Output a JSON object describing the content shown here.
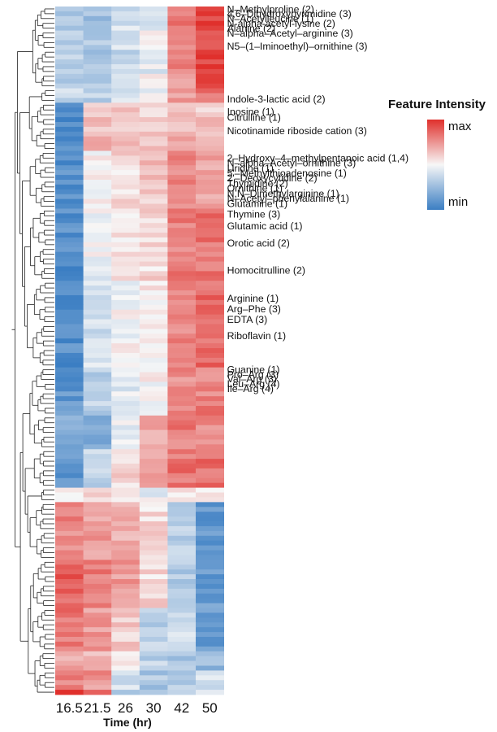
{
  "chart_data": {
    "type": "heatmap",
    "xlabel": "Time (hr)",
    "x_categories": [
      "16.5",
      "21.5",
      "26",
      "30",
      "42",
      "50"
    ],
    "legend": {
      "title": "Feature Intensity",
      "max_label": "max",
      "min_label": "min",
      "colors": {
        "max": "#e0302c",
        "mid": "#f7f7f7",
        "min": "#3b7ec3"
      },
      "placement": "right"
    },
    "scale": "relative intensity, -1 = min (blue), 0 = mid (white), 1 = max (red)",
    "column_dendrogram": false,
    "row_dendrogram": true,
    "row_clusters": [
      {
        "rows": 5,
        "values": [
          -0.35,
          -0.45,
          -0.2,
          -0.1,
          0.6,
          0.9
        ]
      },
      {
        "rows": 4,
        "values": [
          -0.3,
          -0.4,
          -0.15,
          -0.05,
          0.6,
          0.85
        ]
      },
      {
        "rows": 5,
        "values": [
          -0.35,
          -0.4,
          -0.25,
          -0.1,
          0.55,
          0.9
        ]
      },
      {
        "rows": 3,
        "values": [
          -0.3,
          -0.4,
          -0.2,
          0.05,
          0.5,
          0.8
        ]
      },
      {
        "rows": 3,
        "values": [
          -0.25,
          -0.3,
          -0.1,
          -0.05,
          0.45,
          0.7
        ]
      },
      {
        "rows": 10,
        "values": [
          -0.85,
          0.3,
          0.25,
          0.2,
          0.35,
          0.25
        ]
      },
      {
        "rows": 12,
        "values": [
          -0.85,
          0.05,
          0.15,
          0.25,
          0.55,
          0.45
        ]
      },
      {
        "rows": 15,
        "values": [
          -0.85,
          -0.05,
          0.1,
          0.15,
          0.6,
          0.65
        ]
      },
      {
        "rows": 18,
        "values": [
          -0.85,
          -0.2,
          0.0,
          0.05,
          0.6,
          0.7
        ]
      },
      {
        "rows": 10,
        "values": [
          -0.8,
          -0.3,
          -0.1,
          0.0,
          0.55,
          0.6
        ]
      },
      {
        "rows": 7,
        "values": [
          -0.6,
          -0.6,
          -0.05,
          0.4,
          0.6,
          0.55
        ]
      },
      {
        "rows": 8,
        "values": [
          -0.8,
          -0.3,
          0.15,
          0.35,
          0.65,
          0.7
        ]
      },
      {
        "rows": 3,
        "values": [
          0.1,
          0.15,
          0.05,
          -0.05,
          0.1,
          0.1
        ]
      },
      {
        "rows": 12,
        "values": [
          0.55,
          0.45,
          0.35,
          0.15,
          -0.3,
          -0.8
        ]
      },
      {
        "rows": 10,
        "values": [
          0.75,
          0.6,
          0.45,
          0.15,
          -0.35,
          -0.75
        ]
      },
      {
        "rows": 9,
        "values": [
          0.65,
          0.45,
          0.2,
          -0.3,
          -0.2,
          -0.75
        ]
      },
      {
        "rows": 4,
        "values": [
          0.4,
          0.3,
          0.1,
          -0.3,
          -0.45,
          -0.5
        ]
      },
      {
        "rows": 4,
        "values": [
          0.6,
          0.5,
          -0.2,
          -0.4,
          -0.3,
          -0.2
        ]
      },
      {
        "rows": 1,
        "values": [
          0.95,
          0.8,
          -0.5,
          -0.5,
          -0.3,
          -0.2
        ]
      }
    ],
    "row_labels": [
      {
        "text": "N–Methylproline (2)",
        "row": 0
      },
      {
        "text": "4,6–Dihydroxypyrimidine (3)",
        "row": 1
      },
      {
        "text": "N–Acetylleucine (1)",
        "row": 2
      },
      {
        "text": "N-alpha-acetyl-lysine (2)",
        "row": 3
      },
      {
        "text": "Alanine (2)",
        "row": 4
      },
      {
        "text": "N–alpha–Acetyl–arginine (3)",
        "row": 5
      },
      {
        "text": "N5–(1–Iminoethyl)–ornithine (3)",
        "row": 7.7
      },
      {
        "text": "Indole-3-lactic acid (2)",
        "row": 18.7
      },
      {
        "text": "Inosine (1)",
        "row": 21.3
      },
      {
        "text": "Citrulline (1)",
        "row": 22.5
      },
      {
        "text": "Nicotinamide riboside cation (3)",
        "row": 25.3
      },
      {
        "text": "2–Hydroxy–4–methylpentanoic acid (1,4)",
        "row": 31
      },
      {
        "text": "N–alpha–Acetyl–ornithine (3)",
        "row": 32
      },
      {
        "text": "Uridine (1)",
        "row": 33.1
      },
      {
        "text": "5'–Methylthioadenosine (1)",
        "row": 34.1
      },
      {
        "text": "2'–Deoxycytidine (2)",
        "row": 35.1
      },
      {
        "text": "Thymidine (2)",
        "row": 36.2
      },
      {
        "text": "Ornithine (1)",
        "row": 37.2
      },
      {
        "text": "N,N–Dimethylarginine (1)",
        "row": 38.3
      },
      {
        "text": "N–Acetyl–phenylalanine (1)",
        "row": 39.3
      },
      {
        "text": "Glutamine (1)",
        "row": 40.4
      },
      {
        "text": "Thymine (3)",
        "row": 42.6
      },
      {
        "text": "Glutamic acid (1)",
        "row": 45.1
      },
      {
        "text": "Orotic acid (2)",
        "row": 48.6
      },
      {
        "text": "Homocitrulline (2)",
        "row": 54.3
      },
      {
        "text": "Arginine (1)",
        "row": 60.1
      },
      {
        "text": "Arg–Phe (3)",
        "row": 62.3
      },
      {
        "text": "EDTA (3)",
        "row": 64.5
      },
      {
        "text": "Riboflavin (1)",
        "row": 67.9
      },
      {
        "text": "Guanine (1)",
        "row": 74.9
      },
      {
        "text": "Pro–Arg (3)",
        "row": 75.9
      },
      {
        "text": "Val–Arg (3)",
        "row": 76.9
      },
      {
        "text": "Leu–Arg (4)",
        "row": 77.9
      },
      {
        "text": "Ile–Arg (4)",
        "row": 78.9
      }
    ]
  }
}
